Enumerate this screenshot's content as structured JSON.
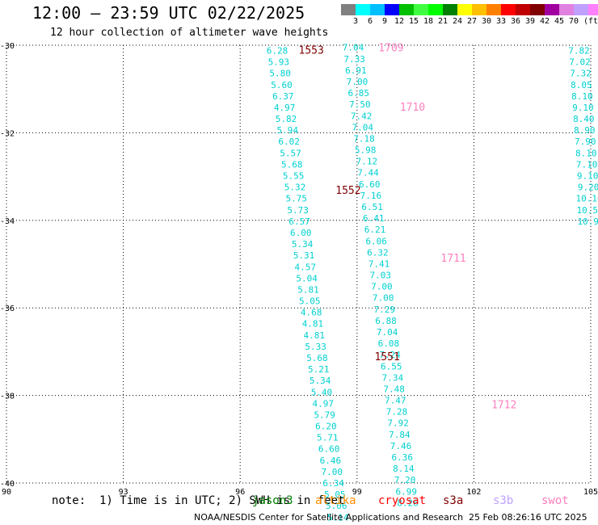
{
  "header": {
    "title": "12:00 – 23:59 UTC 02/22/2025",
    "subtitle": "12 hour collection of altimeter wave heights"
  },
  "colorbar": {
    "colors": [
      "#808080",
      "#00ffff",
      "#00bfff",
      "#0000ff",
      "#00c000",
      "#40ff40",
      "#00ff00",
      "#008000",
      "#ffff00",
      "#ffc000",
      "#ff8000",
      "#ff0000",
      "#c00000",
      "#800000",
      "#a000a0",
      "#e080e0",
      "#c0a0ff",
      "#ff80ff",
      "#000000"
    ],
    "labels": [
      "3",
      "6",
      "9",
      "12",
      "15",
      "18",
      "21",
      "24",
      "27",
      "30",
      "33",
      "36",
      "39",
      "42",
      "45",
      "70",
      "(ft)"
    ]
  },
  "footer": {
    "note": "note:  1) Time is in UTC; 2) SWH is in feet",
    "missions": [
      {
        "name": "jason3",
        "color": "#008000"
      },
      {
        "name": "altika",
        "color": "#ff8c00"
      },
      {
        "name": "cryosat",
        "color": "#ff0000"
      },
      {
        "name": "s3a",
        "color": "#800000"
      },
      {
        "name": "s3b",
        "color": "#c0a0ff"
      },
      {
        "name": "swot",
        "color": "#ff80c0"
      }
    ],
    "credit": "NOAA/NESDIS Center for Satellite Applications and Research",
    "timestamp": "25 Feb 08:26:16 UTC 2025"
  },
  "chart_data": {
    "type": "scatter",
    "title": "12:00 – 23:59 UTC 02/22/2025",
    "subtitle": "12 hour collection of altimeter wave heights",
    "xlabel": "",
    "ylabel": "",
    "xlim": [
      90,
      105
    ],
    "ylim": [
      -40,
      -30
    ],
    "x_ticks": [
      "90",
      "93",
      "96",
      "99",
      "102",
      "105"
    ],
    "y_ticks": [
      "-30",
      "-32",
      "-34",
      "-36",
      "-38",
      "-40"
    ],
    "grid": true,
    "tracks": [
      {
        "label": "1553",
        "label_color": "#800000",
        "label_lon": 97.5,
        "label_lat": -30.1,
        "lon_start": 96.95,
        "lat_start": -30.12,
        "lon_step": 0.038,
        "lat_step": 0.26,
        "value_color": "#00d0d0",
        "values": [
          6.28,
          5.93,
          5.8,
          5.6,
          6.37,
          4.97,
          5.82,
          5.94,
          6.02,
          5.57,
          5.68,
          5.55,
          5.32,
          5.75,
          5.73,
          6.57,
          6.0,
          5.34,
          5.31,
          4.57,
          5.04,
          5.81,
          5.05,
          4.68,
          4.81,
          4.81,
          5.33,
          5.68,
          5.21,
          5.34,
          5.4,
          4.97,
          5.79,
          6.2,
          5.71,
          6.6,
          6.46,
          7.0,
          6.34,
          5.05,
          5.06,
          5.14,
          5.84
        ]
      },
      {
        "label": "1552",
        "label_color": "#800000",
        "label_lon": 98.45,
        "label_lat": -33.3
      },
      {
        "label": "1551",
        "label_color": "#800000",
        "label_lon": 99.45,
        "label_lat": -37.1
      },
      {
        "label": "1709",
        "label_color": "#ff80c0",
        "label_lon": 99.55,
        "label_lat": -30.05,
        "lon_start": 98.9,
        "lat_start": -30.05,
        "lon_step": 0.035,
        "lat_step": 0.26,
        "value_color": "#00d0d0",
        "values": [
          7.04,
          7.33,
          6.91,
          7.0,
          6.85,
          7.5,
          7.42,
          7.04,
          7.18,
          5.98,
          7.12,
          7.44,
          6.6,
          7.16,
          6.51,
          6.41,
          6.21,
          6.06,
          6.32,
          7.41,
          7.03,
          7.0,
          7.0,
          7.29,
          6.88,
          7.04,
          6.08,
          7.24,
          6.55,
          7.34,
          7.48,
          7.47,
          7.28,
          7.92,
          7.84,
          7.46,
          6.36,
          8.14,
          7.2,
          6.99,
          8.26
        ]
      },
      {
        "label": "1710",
        "label_color": "#ff80c0",
        "label_lon": 100.1,
        "label_lat": -31.4
      },
      {
        "label": "1711",
        "label_color": "#ff80c0",
        "label_lon": 101.15,
        "label_lat": -34.85
      },
      {
        "label": "1712",
        "label_color": "#ff80c0",
        "label_lon": 102.45,
        "label_lat": -38.2
      },
      {
        "label": "",
        "lon_start": 104.7,
        "lat_start": -30.12,
        "lon_step": 0.02,
        "lat_step": 0.26,
        "value_color": "#00d0d0",
        "values": [
          7.82,
          7.02,
          7.32,
          8.05,
          8.1,
          9.1,
          8.4,
          8.9,
          7.9,
          8.1,
          7.1,
          9.1,
          9.2,
          10.1,
          10.5,
          10.9
        ]
      }
    ]
  }
}
